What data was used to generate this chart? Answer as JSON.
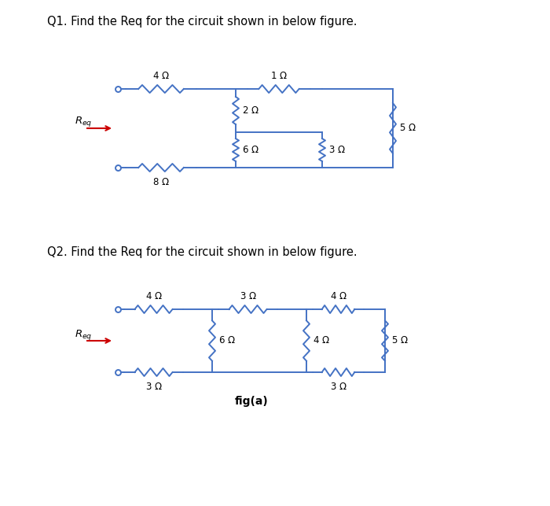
{
  "bg_color": "#ffffff",
  "line_color": "#4472c4",
  "resistor_color": "#4472c4",
  "text_color": "#000000",
  "req_arrow_color": "#cc0000",
  "q1_title": "Q1. Find the Req for the circuit shown in below figure.",
  "q2_title": "Q2. Find the Req for the circuit shown in below figure.",
  "fig_label": "fig(a)",
  "font_size_title": 10.5,
  "font_size_label": 8.5,
  "font_size_req": 9.5
}
